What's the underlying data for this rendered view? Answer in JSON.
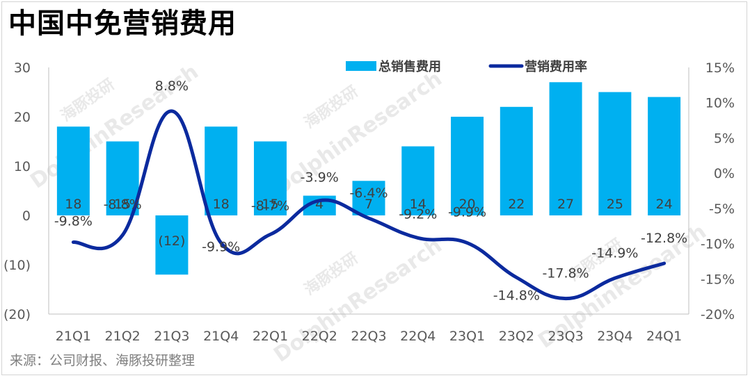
{
  "title": "中国中免营销费用",
  "source": "来源：公司财报、海豚投研整理",
  "watermark": "DolphinResearch",
  "watermark_cn": "海豚投研",
  "colors": {
    "bar": "#00b0f0",
    "line": "#0b2a9e",
    "text": "#404040"
  },
  "chart_data": {
    "type": "bar+line",
    "categories": [
      "21Q1",
      "21Q2",
      "21Q3",
      "21Q4",
      "22Q1",
      "22Q2",
      "22Q3",
      "22Q4",
      "23Q1",
      "23Q2",
      "23Q3",
      "23Q4",
      "24Q1"
    ],
    "series": [
      {
        "name": "总销售费用",
        "type": "bar",
        "axis": "left",
        "values": [
          18,
          15,
          -12,
          18,
          15,
          4,
          7,
          14,
          20,
          22,
          27,
          25,
          24
        ],
        "labels": [
          "18",
          "15",
          "(12)",
          "18",
          "15",
          "4",
          "7",
          "14",
          "20",
          "22",
          "27",
          "25",
          "24"
        ]
      },
      {
        "name": "营销费用率",
        "type": "line",
        "axis": "right",
        "values": [
          -9.8,
          -8.8,
          8.8,
          -9.9,
          -8.7,
          -3.9,
          -6.4,
          -9.2,
          -9.9,
          -14.8,
          -17.8,
          -14.9,
          -12.8
        ],
        "labels": [
          "-9.8%",
          "-8.8%",
          "8.8%",
          "-9.9%",
          "-8.7%",
          "-3.9%",
          "-6.4%",
          "-9.2%",
          "-9.9%",
          "-14.8%",
          "-17.8%",
          "-14.9%",
          "-12.8%"
        ]
      }
    ],
    "left_axis": {
      "ylim": [
        -20,
        30
      ],
      "ticks": [
        30,
        20,
        10,
        0,
        -10,
        -20
      ],
      "tick_labels": [
        "30",
        "20",
        "10",
        "0",
        "(10)",
        "(20)"
      ]
    },
    "right_axis": {
      "ylim": [
        -20,
        15
      ],
      "ticks": [
        15,
        10,
        5,
        0,
        -5,
        -10,
        -15,
        -20
      ],
      "tick_labels": [
        "15%",
        "10%",
        "5%",
        "0%",
        "-5%",
        "-10%",
        "-15%",
        "-20%"
      ]
    },
    "legend_position": "top-right",
    "grid": false
  }
}
